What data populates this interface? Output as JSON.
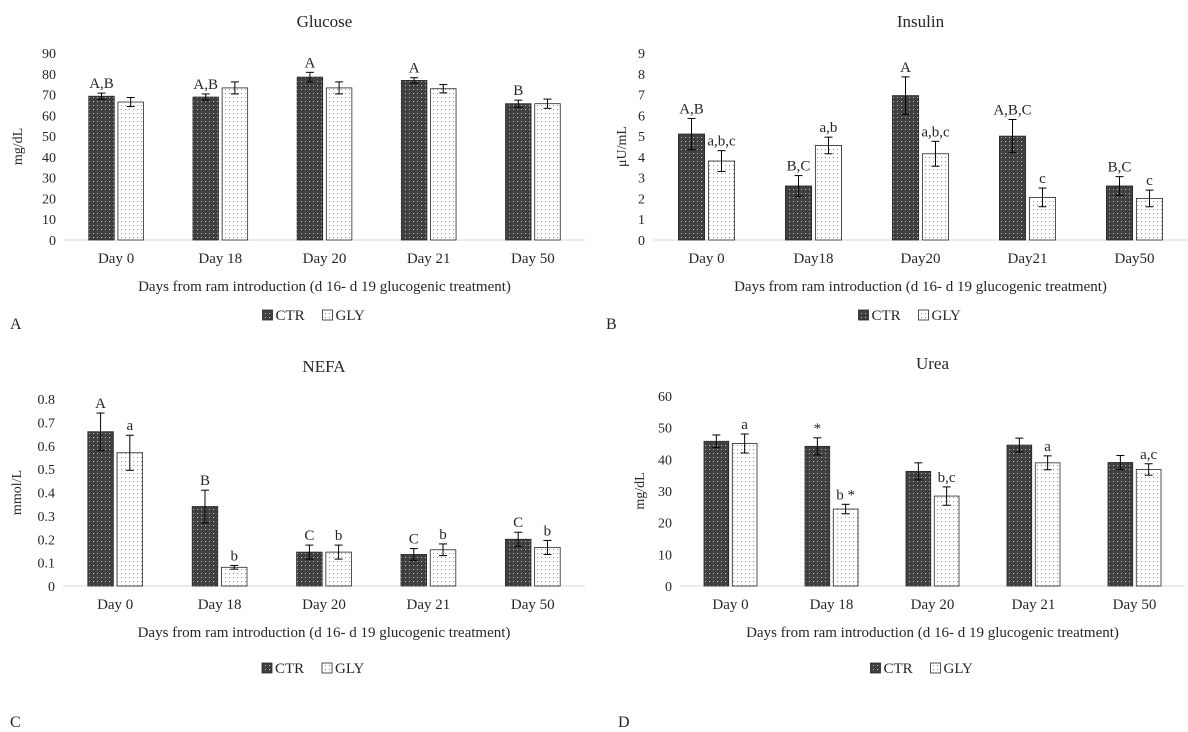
{
  "panel_letters": [
    "A",
    "B",
    "C",
    "D"
  ],
  "colors": {
    "ctr": "#404040",
    "gly": "#ffffff",
    "axis": "#d9d9d9",
    "text": "#262626",
    "error": "#000000"
  },
  "legend": {
    "ctr": "CTR",
    "gly": "GLY"
  },
  "chart_data": [
    {
      "type": "bar",
      "title": "Glucose",
      "xlabel": "Days from ram introduction (d 16- d 19 glucogenic treatment)",
      "ylabel": "mg/dL",
      "ylim": [
        0,
        90
      ],
      "yticks": [
        0,
        10,
        20,
        30,
        40,
        50,
        60,
        70,
        80,
        90
      ],
      "categories": [
        "Day 0",
        "Day 18",
        "Day 20",
        "Day 21",
        "Day 50"
      ],
      "series": [
        {
          "name": "CTR",
          "values": [
            69.2,
            68.8,
            78.4,
            76.8,
            65.6
          ],
          "errors": [
            1.5,
            1.5,
            2.3,
            1.3,
            1.7
          ],
          "labels": [
            "A,B",
            "A,B",
            "A",
            "A",
            "B"
          ]
        },
        {
          "name": "GLY",
          "values": [
            66.4,
            73.2,
            73.2,
            72.8,
            65.6
          ],
          "errors": [
            2.2,
            2.9,
            2.9,
            2.0,
            2.2
          ],
          "labels": [
            "",
            "",
            "",
            "",
            ""
          ]
        }
      ],
      "grid": false,
      "legend_position": "bottom"
    },
    {
      "type": "bar",
      "title": "Insulin",
      "xlabel": "Days from ram introduction (d 16- d 19 glucogenic treatment)",
      "ylabel": "μU/mL",
      "ylim": [
        0,
        9
      ],
      "yticks": [
        0,
        1,
        2,
        3,
        4,
        5,
        6,
        7,
        8,
        9
      ],
      "categories": [
        "Day 0",
        "Day18",
        "Day20",
        "Day21",
        "Day50"
      ],
      "series": [
        {
          "name": "CTR",
          "values": [
            5.1,
            2.6,
            6.95,
            5.0,
            2.6
          ],
          "errors": [
            0.75,
            0.5,
            0.9,
            0.8,
            0.45
          ],
          "labels": [
            "A,B",
            "B,C",
            "A",
            "A,B,C",
            "B,C"
          ]
        },
        {
          "name": "GLY",
          "values": [
            3.8,
            4.55,
            4.15,
            2.05,
            2.0
          ],
          "errors": [
            0.5,
            0.4,
            0.6,
            0.45,
            0.4
          ],
          "labels": [
            "a,b,c",
            "a,b",
            "a,b,c",
            "c",
            "c"
          ]
        }
      ],
      "grid": false,
      "legend_position": "bottom"
    },
    {
      "type": "bar",
      "title": "NEFA",
      "xlabel": "Days from ram introduction (d 16- d 19 glucogenic treatment)",
      "ylabel": "mmol/L",
      "ylim": [
        0,
        0.8
      ],
      "yticks": [
        0,
        0.1,
        0.2,
        0.3,
        0.4,
        0.5,
        0.6,
        0.7,
        0.8
      ],
      "categories": [
        "Day 0",
        "Day 18",
        "Day 20",
        "Day 21",
        "Day 50"
      ],
      "series": [
        {
          "name": "CTR",
          "values": [
            0.66,
            0.34,
            0.145,
            0.135,
            0.2
          ],
          "errors": [
            0.08,
            0.07,
            0.03,
            0.025,
            0.03
          ],
          "labels": [
            "A",
            "B",
            "C",
            "C",
            "C"
          ]
        },
        {
          "name": "GLY",
          "values": [
            0.57,
            0.08,
            0.145,
            0.155,
            0.165
          ],
          "errors": [
            0.075,
            0.008,
            0.03,
            0.025,
            0.03
          ],
          "labels": [
            "a",
            "b",
            "b",
            "b",
            "b"
          ]
        }
      ],
      "grid": false,
      "legend_position": "bottom"
    },
    {
      "type": "bar",
      "title": "Urea",
      "xlabel": "Days from ram introduction (d 16- d 19 glucogenic treatment)",
      "ylabel": "mg/dL",
      "ylim": [
        0,
        60
      ],
      "yticks": [
        0,
        10,
        20,
        30,
        40,
        50,
        60
      ],
      "categories": [
        "Day 0",
        "Day 18",
        "Day 20",
        "Day 21",
        "Day 50"
      ],
      "series": [
        {
          "name": "CTR",
          "values": [
            45.7,
            44.1,
            36.2,
            44.5,
            39.0
          ],
          "errors": [
            2.0,
            2.7,
            2.7,
            2.2,
            2.2
          ],
          "labels": [
            "",
            "*",
            "",
            "",
            ""
          ]
        },
        {
          "name": "GLY",
          "values": [
            45.0,
            24.3,
            28.4,
            38.9,
            36.8
          ],
          "errors": [
            3.0,
            1.5,
            2.9,
            2.2,
            1.8
          ],
          "labels": [
            "a",
            "b *",
            "b,c",
            "a",
            "a,c"
          ]
        }
      ],
      "grid": false,
      "legend_position": "bottom"
    }
  ]
}
